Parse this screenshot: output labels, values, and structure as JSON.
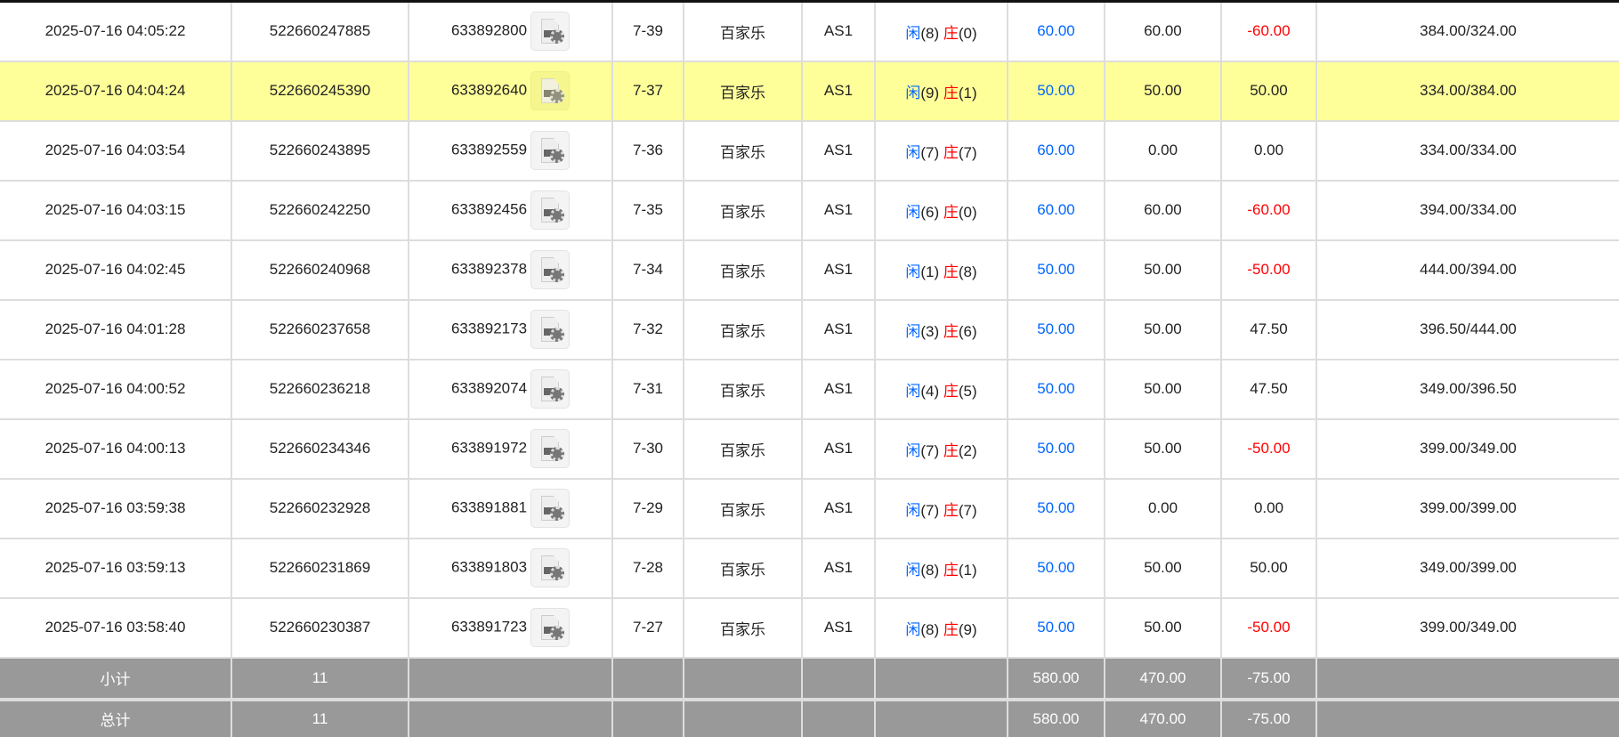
{
  "colors": {
    "blue": "#0066ff",
    "red": "#ff0000",
    "highlight": "#ffff99",
    "summary_bg": "#999999"
  },
  "rows": [
    {
      "time": "2025-07-16 04:05:22",
      "bet_id": "522660247885",
      "round_id": "633892800",
      "shoe": "7-39",
      "game": "百家乐",
      "table": "AS1",
      "player": "闲",
      "player_pts": "(8)",
      "banker": "庄",
      "banker_pts": "(0)",
      "bet": "60.00",
      "valid": "60.00",
      "win": "-60.00",
      "win_neg": true,
      "balance": "384.00/324.00"
    },
    {
      "time": "2025-07-16 04:04:24",
      "bet_id": "522660245390",
      "round_id": "633892640",
      "shoe": "7-37",
      "game": "百家乐",
      "table": "AS1",
      "player": "闲",
      "player_pts": "(9)",
      "banker": "庄",
      "banker_pts": "(1)",
      "bet": "50.00",
      "valid": "50.00",
      "win": "50.00",
      "win_neg": false,
      "balance": "334.00/384.00",
      "highlighted": true
    },
    {
      "time": "2025-07-16 04:03:54",
      "bet_id": "522660243895",
      "round_id": "633892559",
      "shoe": "7-36",
      "game": "百家乐",
      "table": "AS1",
      "player": "闲",
      "player_pts": "(7)",
      "banker": "庄",
      "banker_pts": "(7)",
      "bet": "60.00",
      "valid": "0.00",
      "win": "0.00",
      "win_neg": false,
      "balance": "334.00/334.00"
    },
    {
      "time": "2025-07-16 04:03:15",
      "bet_id": "522660242250",
      "round_id": "633892456",
      "shoe": "7-35",
      "game": "百家乐",
      "table": "AS1",
      "player": "闲",
      "player_pts": "(6)",
      "banker": "庄",
      "banker_pts": "(0)",
      "bet": "60.00",
      "valid": "60.00",
      "win": "-60.00",
      "win_neg": true,
      "balance": "394.00/334.00"
    },
    {
      "time": "2025-07-16 04:02:45",
      "bet_id": "522660240968",
      "round_id": "633892378",
      "shoe": "7-34",
      "game": "百家乐",
      "table": "AS1",
      "player": "闲",
      "player_pts": "(1)",
      "banker": "庄",
      "banker_pts": "(8)",
      "bet": "50.00",
      "valid": "50.00",
      "win": "-50.00",
      "win_neg": true,
      "balance": "444.00/394.00"
    },
    {
      "time": "2025-07-16 04:01:28",
      "bet_id": "522660237658",
      "round_id": "633892173",
      "shoe": "7-32",
      "game": "百家乐",
      "table": "AS1",
      "player": "闲",
      "player_pts": "(3)",
      "banker": "庄",
      "banker_pts": "(6)",
      "bet": "50.00",
      "valid": "50.00",
      "win": "47.50",
      "win_neg": false,
      "balance": "396.50/444.00"
    },
    {
      "time": "2025-07-16 04:00:52",
      "bet_id": "522660236218",
      "round_id": "633892074",
      "shoe": "7-31",
      "game": "百家乐",
      "table": "AS1",
      "player": "闲",
      "player_pts": "(4)",
      "banker": "庄",
      "banker_pts": "(5)",
      "bet": "50.00",
      "valid": "50.00",
      "win": "47.50",
      "win_neg": false,
      "balance": "349.00/396.50"
    },
    {
      "time": "2025-07-16 04:00:13",
      "bet_id": "522660234346",
      "round_id": "633891972",
      "shoe": "7-30",
      "game": "百家乐",
      "table": "AS1",
      "player": "闲",
      "player_pts": "(7)",
      "banker": "庄",
      "banker_pts": "(2)",
      "bet": "50.00",
      "valid": "50.00",
      "win": "-50.00",
      "win_neg": true,
      "balance": "399.00/349.00"
    },
    {
      "time": "2025-07-16 03:59:38",
      "bet_id": "522660232928",
      "round_id": "633891881",
      "shoe": "7-29",
      "game": "百家乐",
      "table": "AS1",
      "player": "闲",
      "player_pts": "(7)",
      "banker": "庄",
      "banker_pts": "(7)",
      "bet": "50.00",
      "valid": "0.00",
      "win": "0.00",
      "win_neg": false,
      "balance": "399.00/399.00"
    },
    {
      "time": "2025-07-16 03:59:13",
      "bet_id": "522660231869",
      "round_id": "633891803",
      "shoe": "7-28",
      "game": "百家乐",
      "table": "AS1",
      "player": "闲",
      "player_pts": "(8)",
      "banker": "庄",
      "banker_pts": "(1)",
      "bet": "50.00",
      "valid": "50.00",
      "win": "50.00",
      "win_neg": false,
      "balance": "349.00/399.00"
    },
    {
      "time": "2025-07-16 03:58:40",
      "bet_id": "522660230387",
      "round_id": "633891723",
      "shoe": "7-27",
      "game": "百家乐",
      "table": "AS1",
      "player": "闲",
      "player_pts": "(8)",
      "banker": "庄",
      "banker_pts": "(9)",
      "bet": "50.00",
      "valid": "50.00",
      "win": "-50.00",
      "win_neg": true,
      "balance": "399.00/349.00"
    }
  ],
  "summary": [
    {
      "label": "小计",
      "count": "11",
      "bet": "580.00",
      "valid": "470.00",
      "win": "-75.00"
    },
    {
      "label": "总计",
      "count": "11",
      "bet": "580.00",
      "valid": "470.00",
      "win": "-75.00"
    }
  ]
}
